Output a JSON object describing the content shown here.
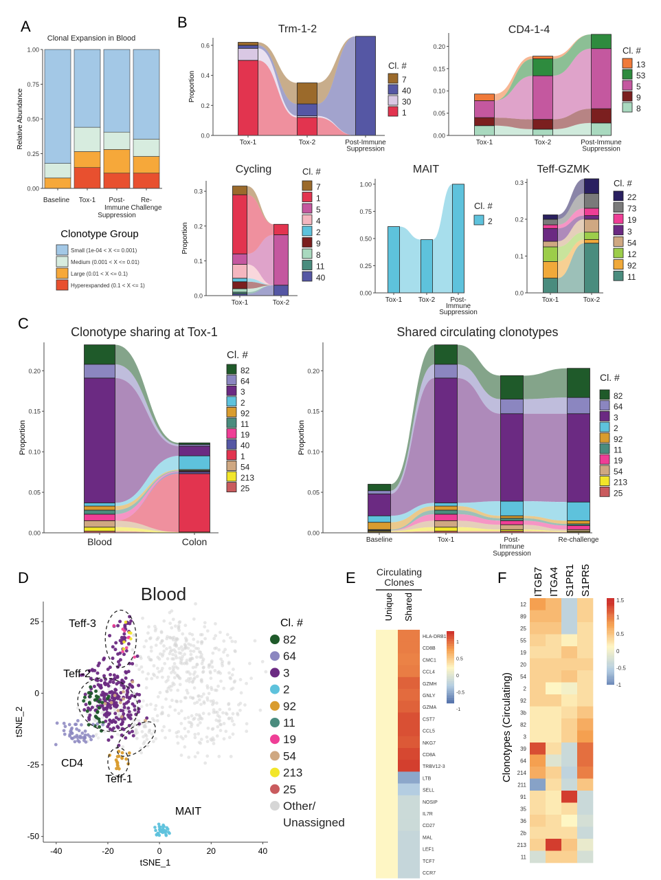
{
  "panels": {
    "A": "A",
    "B": "B",
    "C": "C",
    "D": "D",
    "E": "E",
    "F": "F"
  },
  "chart_data": [
    {
      "id": "A",
      "type": "bar",
      "title": "Clonal Expansion in Blood",
      "ylabel": "Relative Abundance",
      "categories": [
        "Baseline",
        "Tox-1",
        "Post-\nImmune\nSuppression",
        "Re-\nChallenge"
      ],
      "ylim": [
        0,
        1
      ],
      "yticks": [
        "0.00",
        "0.25",
        "0.50",
        "0.75",
        "1.00"
      ],
      "series": [
        {
          "name": "Hyperexpanded (0.1 < X <= 1)",
          "color": "#e8502f",
          "values": [
            0.0,
            0.15,
            0.11,
            0.11
          ]
        },
        {
          "name": "Large (0.01 < X <= 0.1)",
          "color": "#f6a83a",
          "values": [
            0.075,
            0.115,
            0.17,
            0.12
          ]
        },
        {
          "name": "Medium (0.001 < X <= 0.01)",
          "color": "#d7ecdf",
          "values": [
            0.105,
            0.175,
            0.125,
            0.125
          ]
        },
        {
          "name": "Small (1e-04 < X <= 0.001)",
          "color": "#a3c8e6",
          "values": [
            0.82,
            0.56,
            0.595,
            0.645
          ]
        }
      ],
      "legend_title": "Clonotype Group"
    },
    {
      "id": "B1",
      "type": "area",
      "title": "Trm-1-2",
      "ylabel": "Proportion",
      "categories": [
        "Tox-1",
        "Tox-2",
        "Post-Immune\nSuppression"
      ],
      "ylim": [
        0,
        0.65
      ],
      "yticks": [
        "0.0",
        "0.2",
        "0.4",
        "0.6"
      ],
      "legend_title": "Cl. #",
      "series": [
        {
          "name": "1",
          "color": "#e2344f",
          "values": [
            0.5,
            0.12,
            0
          ]
        },
        {
          "name": "30",
          "color": "#d9c8e4",
          "values": [
            0.08,
            0.01,
            0
          ]
        },
        {
          "name": "40",
          "color": "#5557a4",
          "values": [
            0.02,
            0.08,
            0.66
          ]
        },
        {
          "name": "7",
          "color": "#9b6a2b",
          "values": [
            0.02,
            0.14,
            0
          ]
        }
      ]
    },
    {
      "id": "B2",
      "type": "area",
      "title": "CD4-1-4",
      "categories": [
        "Tox-1",
        "Tox-2",
        "Post-Immune\nSuppression"
      ],
      "ylim": [
        0,
        0.23
      ],
      "yticks": [
        "0.00",
        "0.05",
        "0.10",
        "0.15",
        "0.20"
      ],
      "legend_title": "Cl. #",
      "series": [
        {
          "name": "8",
          "color": "#a9d9bf",
          "values": [
            0.022,
            0.014,
            0.028
          ]
        },
        {
          "name": "9",
          "color": "#7b1f1f",
          "values": [
            0.018,
            0.022,
            0.032
          ]
        },
        {
          "name": "5",
          "color": "#c4589f",
          "values": [
            0.038,
            0.098,
            0.135
          ]
        },
        {
          "name": "53",
          "color": "#2e8b3e",
          "values": [
            0.0,
            0.038,
            0.032
          ]
        },
        {
          "name": "13",
          "color": "#f07a3a",
          "values": [
            0.015,
            0.006,
            0.0
          ]
        }
      ]
    },
    {
      "id": "B3",
      "type": "area",
      "title": "Cycling",
      "ylabel": "Proportion",
      "categories": [
        "Tox-1",
        "Tox-2"
      ],
      "ylim": [
        0,
        0.33
      ],
      "yticks": [
        "0.0",
        "0.1",
        "0.2",
        "0.3"
      ],
      "legend_title": "Cl. #",
      "series": [
        {
          "name": "40",
          "color": "#5557a4",
          "values": [
            0.005,
            0.03
          ]
        },
        {
          "name": "11",
          "color": "#4a8c7e",
          "values": [
            0.005,
            0.0
          ]
        },
        {
          "name": "8",
          "color": "#a9d9bf",
          "values": [
            0.01,
            0.0
          ]
        },
        {
          "name": "9",
          "color": "#7b1f1f",
          "values": [
            0.02,
            0.0
          ]
        },
        {
          "name": "2",
          "color": "#5ec2dc",
          "values": [
            0.01,
            0.0
          ]
        },
        {
          "name": "4",
          "color": "#f4b6bf",
          "values": [
            0.04,
            0.0
          ]
        },
        {
          "name": "5",
          "color": "#c4589f",
          "values": [
            0.03,
            0.145
          ]
        },
        {
          "name": "1",
          "color": "#e2344f",
          "values": [
            0.17,
            0.03
          ]
        },
        {
          "name": "7",
          "color": "#9b6a2b",
          "values": [
            0.025,
            0.0
          ]
        }
      ]
    },
    {
      "id": "B4",
      "type": "area",
      "title": "MAIT",
      "categories": [
        "Tox-1",
        "Tox-2",
        "Post-\nImmune\nSuppression"
      ],
      "ylim": [
        0,
        1.05
      ],
      "yticks": [
        "0.00",
        "0.25",
        "0.50",
        "0.75",
        "1.00"
      ],
      "legend_title": "Cl. #",
      "series": [
        {
          "name": "2",
          "color": "#5ec2dc",
          "values": [
            0.61,
            0.49,
            1.0
          ]
        }
      ]
    },
    {
      "id": "B5",
      "type": "area",
      "title": "Teff-GZMK",
      "categories": [
        "Tox-1",
        "Tox-2"
      ],
      "ylim": [
        0,
        0.31
      ],
      "yticks": [
        "0.0",
        "0.1",
        "0.2",
        "0.3"
      ],
      "legend_title": "Cl. #",
      "series": [
        {
          "name": "11",
          "color": "#4a8c7e",
          "values": [
            0.04,
            0.135
          ]
        },
        {
          "name": "92",
          "color": "#f0a93a",
          "values": [
            0.045,
            0.01
          ]
        },
        {
          "name": "12",
          "color": "#9ccd4a",
          "values": [
            0.04,
            0.02
          ]
        },
        {
          "name": "54",
          "color": "#cfa882",
          "values": [
            0.015,
            0.035
          ]
        },
        {
          "name": "3",
          "color": "#6b2a82",
          "values": [
            0.035,
            0.01
          ]
        },
        {
          "name": "19",
          "color": "#ef3e96",
          "values": [
            0.01,
            0.02
          ]
        },
        {
          "name": "73",
          "color": "#7a7a7a",
          "values": [
            0.015,
            0.04
          ]
        },
        {
          "name": "22",
          "color": "#2a2060",
          "values": [
            0.012,
            0.04
          ]
        }
      ]
    },
    {
      "id": "C1",
      "type": "area",
      "title": "Clonotype sharing at Tox-1",
      "ylabel": "Proportion",
      "categories": [
        "Blood",
        "Colon"
      ],
      "ylim": [
        0,
        0.235
      ],
      "yticks": [
        "0.00",
        "0.05",
        "0.10",
        "0.15",
        "0.20"
      ],
      "legend_title": "Cl. #",
      "series": [
        {
          "name": "25",
          "color": "#c95b5e",
          "values": [
            0.002,
            0.0
          ]
        },
        {
          "name": "213",
          "color": "#f2e62a",
          "values": [
            0.005,
            0.001
          ]
        },
        {
          "name": "54",
          "color": "#cfa882",
          "values": [
            0.008,
            0.0
          ]
        },
        {
          "name": "1",
          "color": "#e2344f",
          "values": [
            0.0,
            0.072
          ]
        },
        {
          "name": "40",
          "color": "#5557a4",
          "values": [
            0.0,
            0.002
          ]
        },
        {
          "name": "19",
          "color": "#ef3e96",
          "values": [
            0.008,
            0.001
          ]
        },
        {
          "name": "11",
          "color": "#4a8c7e",
          "values": [
            0.005,
            0.001
          ]
        },
        {
          "name": "92",
          "color": "#d99c2e",
          "values": [
            0.005,
            0.001
          ]
        },
        {
          "name": "2",
          "color": "#5ec2dc",
          "values": [
            0.004,
            0.017
          ]
        },
        {
          "name": "3",
          "color": "#6b2a82",
          "values": [
            0.154,
            0.012
          ]
        },
        {
          "name": "64",
          "color": "#8b86c0",
          "values": [
            0.017,
            0.002
          ]
        },
        {
          "name": "82",
          "color": "#1f5a2a",
          "values": [
            0.024,
            0.002
          ]
        }
      ]
    },
    {
      "id": "C2",
      "type": "area",
      "title": "Shared circulating clonotypes",
      "ylabel": "Proportion",
      "categories": [
        "Baseline",
        "Tox-1",
        "Post-\nImmune\nSuppression",
        "Re-challenge"
      ],
      "ylim": [
        0,
        0.235
      ],
      "yticks": [
        "0.00",
        "0.05",
        "0.10",
        "0.15",
        "0.20"
      ],
      "legend_title": "Cl. #",
      "series": [
        {
          "name": "25",
          "color": "#c95b5e",
          "values": [
            0.001,
            0.002,
            0.002,
            0.001
          ]
        },
        {
          "name": "213",
          "color": "#f2e62a",
          "values": [
            0.001,
            0.005,
            0.002,
            0.001
          ]
        },
        {
          "name": "54",
          "color": "#cfa882",
          "values": [
            0.001,
            0.008,
            0.006,
            0.002
          ]
        },
        {
          "name": "19",
          "color": "#ef3e96",
          "values": [
            0.0,
            0.008,
            0.005,
            0.005
          ]
        },
        {
          "name": "11",
          "color": "#4a8c7e",
          "values": [
            0.001,
            0.005,
            0.003,
            0.002
          ]
        },
        {
          "name": "92",
          "color": "#d99c2e",
          "values": [
            0.009,
            0.005,
            0.003,
            0.004
          ]
        },
        {
          "name": "2",
          "color": "#5ec2dc",
          "values": [
            0.008,
            0.004,
            0.018,
            0.023
          ]
        },
        {
          "name": "3",
          "color": "#6b2a82",
          "values": [
            0.027,
            0.154,
            0.108,
            0.109
          ]
        },
        {
          "name": "64",
          "color": "#8b86c0",
          "values": [
            0.004,
            0.017,
            0.018,
            0.02
          ]
        },
        {
          "name": "82",
          "color": "#1f5a2a",
          "values": [
            0.008,
            0.024,
            0.029,
            0.036
          ]
        }
      ]
    },
    {
      "id": "D",
      "type": "scatter",
      "title": "Blood",
      "xlabel": "tSNE_1",
      "ylabel": "tSNE_2",
      "xlim": [
        -45,
        42
      ],
      "ylim": [
        -52,
        32
      ],
      "xticks": [
        "-40",
        "-20",
        "0",
        "20",
        "40"
      ],
      "yticks": [
        "25",
        "0",
        "-25",
        "-50"
      ],
      "cluster_labels": [
        "Teff-3",
        "Teff-2",
        "CD4",
        "Teff-1",
        "MAIT"
      ],
      "legend_title": "Cl. #",
      "legend": [
        {
          "name": "82",
          "color": "#1f5a2a"
        },
        {
          "name": "64",
          "color": "#8b86c0"
        },
        {
          "name": "3",
          "color": "#6b2a82"
        },
        {
          "name": "2",
          "color": "#5ec2dc"
        },
        {
          "name": "92",
          "color": "#d99c2e"
        },
        {
          "name": "11",
          "color": "#4a8c7e"
        },
        {
          "name": "19",
          "color": "#ef3e96"
        },
        {
          "name": "54",
          "color": "#cfa882"
        },
        {
          "name": "213",
          "color": "#f2e62a"
        },
        {
          "name": "25",
          "color": "#c95b5e"
        },
        {
          "name": "Other/\nUnassigned",
          "color": "#d6d6d6"
        }
      ]
    },
    {
      "id": "E",
      "type": "heatmap",
      "header": "Circulating\nClones",
      "columns": [
        "Unique",
        "Shared"
      ],
      "rows": [
        "HLA-DRB1",
        "CD8B",
        "CMC1",
        "CCL4",
        "GZMH",
        "GNLY",
        "GZMA",
        "CST7",
        "CCL5",
        "NKG7",
        "CD8A",
        "TRBV12-3",
        "LTB",
        "SELL",
        "NOSIP",
        "IL7R",
        "CD27",
        "MAL",
        "LEF1",
        "TCF7",
        "CCR7"
      ],
      "values": [
        [
          0,
          0.85
        ],
        [
          0,
          0.85
        ],
        [
          0,
          0.82
        ],
        [
          0,
          0.85
        ],
        [
          0,
          1.0
        ],
        [
          0,
          0.95
        ],
        [
          0,
          1.0
        ],
        [
          0,
          1.1
        ],
        [
          0,
          1.1
        ],
        [
          0,
          1.05
        ],
        [
          0,
          1.15
        ],
        [
          0,
          1.2
        ],
        [
          0,
          -0.9
        ],
        [
          0,
          -0.65
        ],
        [
          0,
          -0.45
        ],
        [
          0,
          -0.45
        ],
        [
          0,
          -0.45
        ],
        [
          0,
          -0.5
        ],
        [
          0,
          -0.5
        ],
        [
          0,
          -0.5
        ],
        [
          0,
          -0.5
        ]
      ],
      "colorbar": [
        "1",
        "0.5",
        "0",
        "-0.5",
        "-1"
      ]
    },
    {
      "id": "F",
      "type": "heatmap",
      "ylabel": "Clonotypes (Circulating)",
      "columns": [
        "ITGB7",
        "ITGA4",
        "S1PR1",
        "S1PR5"
      ],
      "rows": [
        "12",
        "89",
        "25",
        "55",
        "19",
        "20",
        "54",
        "2",
        "92",
        "3b",
        "82",
        "3",
        "39",
        "64",
        "214",
        "211",
        "91",
        "35",
        "36",
        "2b",
        "213",
        "11"
      ],
      "values": [
        [
          0.7,
          0.5,
          -0.6,
          0.3
        ],
        [
          0.5,
          0.5,
          -0.6,
          0.3
        ],
        [
          0.4,
          0.4,
          -0.6,
          0.2
        ],
        [
          0.3,
          0.2,
          0.05,
          0.2
        ],
        [
          0.2,
          0.2,
          0.4,
          0.2
        ],
        [
          0.3,
          0.3,
          0.3,
          0.3
        ],
        [
          0.3,
          0.3,
          0.4,
          0.2
        ],
        [
          0.3,
          0.0,
          -0.1,
          0.2
        ],
        [
          0.3,
          0.3,
          0.1,
          0.2
        ],
        [
          0.1,
          0.1,
          0.2,
          0.4
        ],
        [
          0.1,
          0.1,
          0.3,
          0.6
        ],
        [
          0.1,
          0.1,
          0.3,
          0.7
        ],
        [
          1.2,
          0.2,
          -0.5,
          1.0
        ],
        [
          0.7,
          -0.3,
          -0.5,
          1.0
        ],
        [
          0.6,
          0.3,
          -0.6,
          0.9
        ],
        [
          -1.0,
          0.2,
          -0.5,
          0.4
        ],
        [
          0.2,
          0.1,
          1.3,
          -0.5
        ],
        [
          0.2,
          0.1,
          0.2,
          -0.5
        ],
        [
          0.3,
          0.2,
          0.0,
          -0.4
        ],
        [
          0.2,
          0.2,
          0.2,
          -0.5
        ],
        [
          0.3,
          1.3,
          0.4,
          -0.2
        ],
        [
          -0.4,
          0.3,
          0.3,
          -0.4
        ]
      ],
      "colorbar": [
        "1.5",
        "1",
        "0.5",
        "0",
        "-0.5",
        "-1"
      ]
    }
  ]
}
